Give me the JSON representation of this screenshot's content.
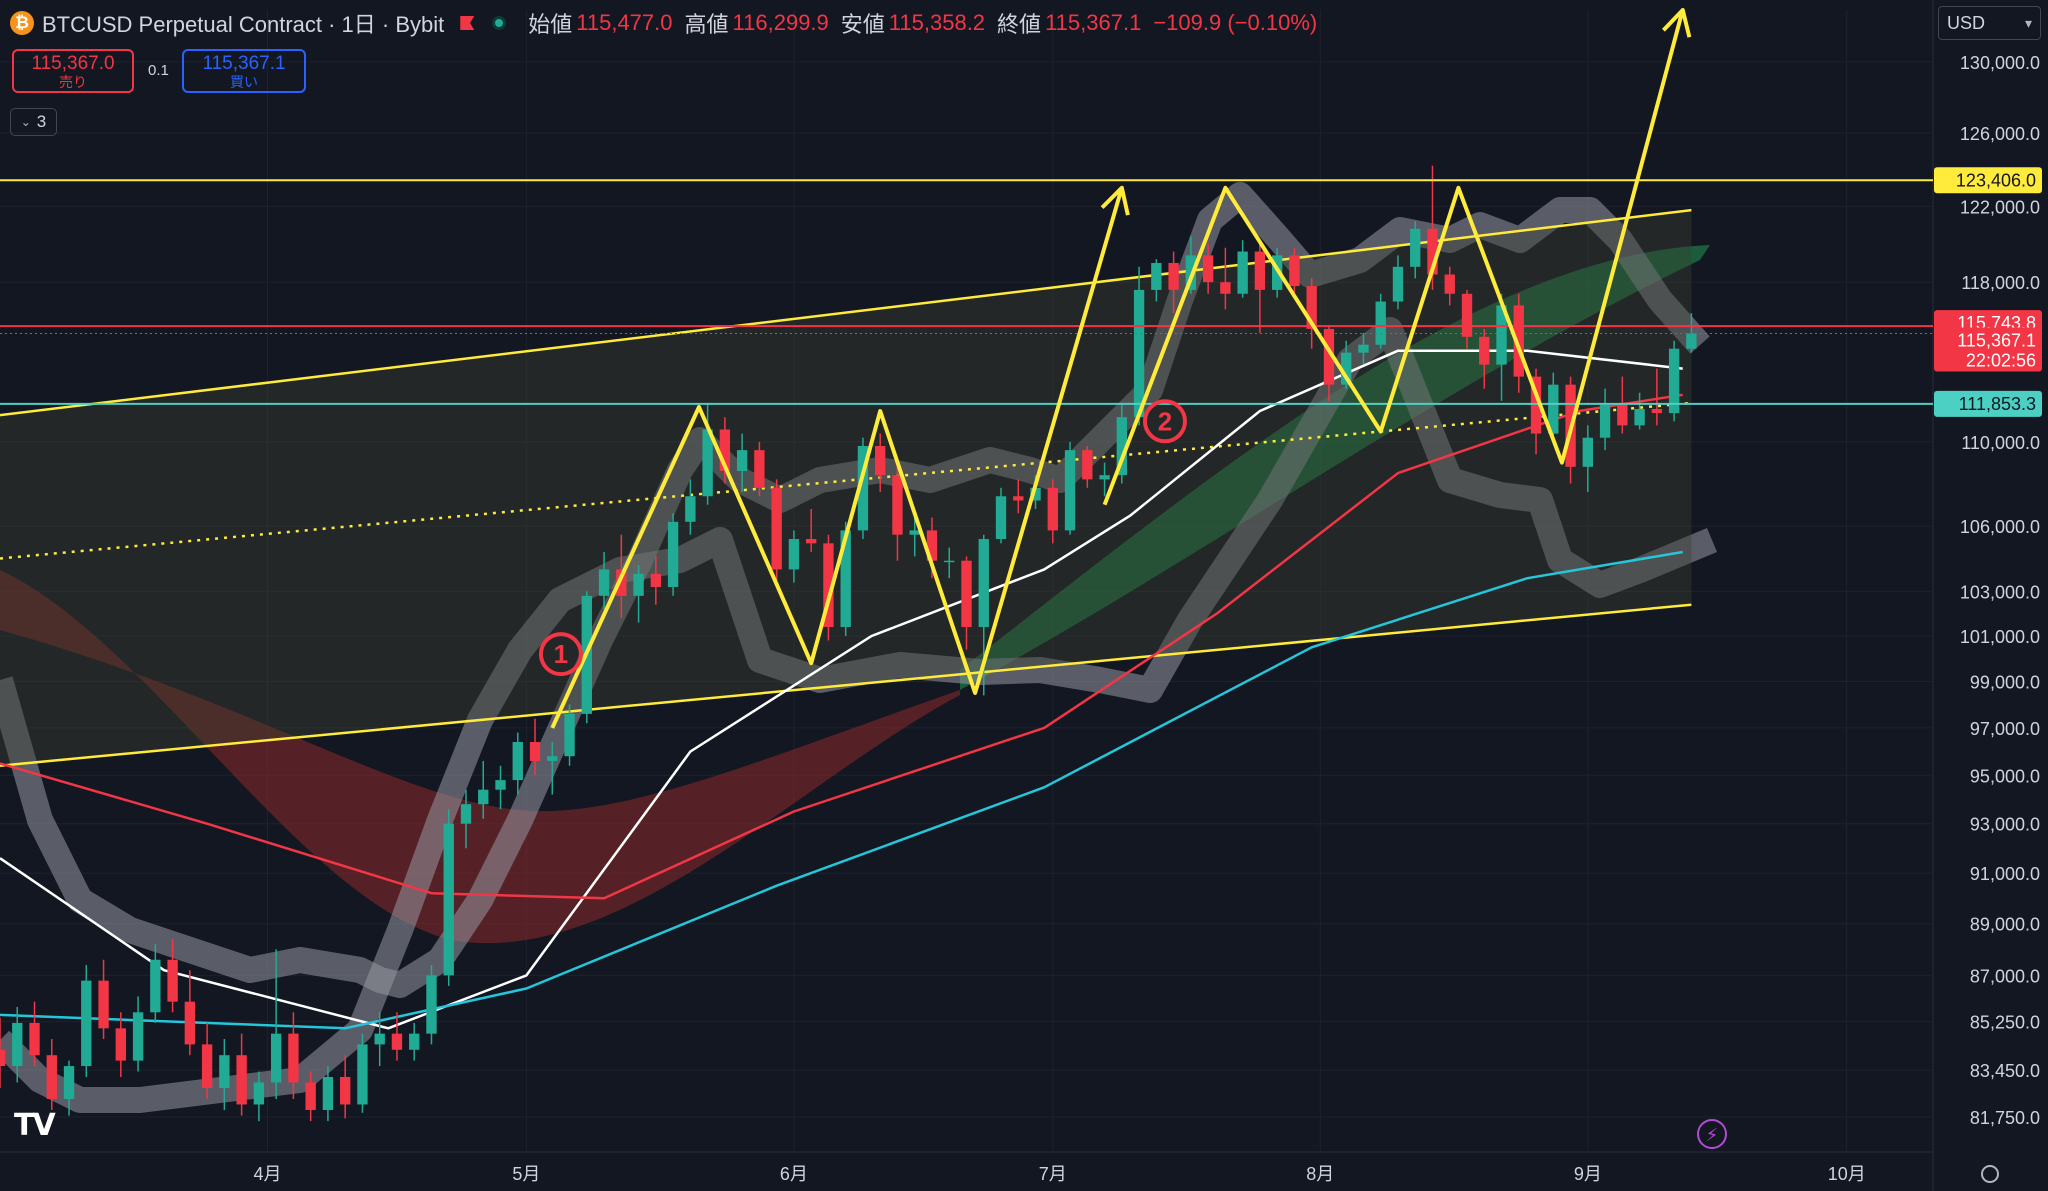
{
  "header": {
    "symbol_icon": "bitcoin-icon",
    "title": "BTCUSD Perpetual Contract · 1日 · Bybit",
    "ohlc": [
      {
        "label": "始値",
        "value": "115,477.0"
      },
      {
        "label": "高値",
        "value": "116,299.9"
      },
      {
        "label": "安値",
        "value": "115,358.2"
      },
      {
        "label": "終値",
        "value": "115,367.1"
      }
    ],
    "change": "−109.9 (−0.10%)"
  },
  "trade": {
    "sell_price": "115,367.0",
    "sell_label": "売り",
    "quantity": "0.1",
    "buy_price": "115,367.1",
    "buy_label": "買い"
  },
  "indicators": {
    "count": "3"
  },
  "currency": {
    "label": "USD"
  },
  "colors": {
    "background": "#131722",
    "up": "#22ab94",
    "down": "#f23645",
    "yellow": "#ffeb3b",
    "cyan": "#26c6da",
    "teal": "#4dd0c4"
  },
  "chart_data": {
    "type": "candlestick",
    "x_axis": {
      "range": [
        "2025-03-01",
        "2025-10-11"
      ],
      "ticks": [
        {
          "date": "2025-04-01",
          "label": "4月"
        },
        {
          "date": "2025-05-01",
          "label": "5月"
        },
        {
          "date": "2025-06-01",
          "label": "6月"
        },
        {
          "date": "2025-07-01",
          "label": "7月"
        },
        {
          "date": "2025-08-01",
          "label": "8月"
        },
        {
          "date": "2025-09-01",
          "label": "9月"
        },
        {
          "date": "2025-10-01",
          "label": "10月"
        }
      ]
    },
    "y_axis": {
      "scale": "log",
      "range": [
        80500,
        133000
      ],
      "ticks": [
        "130,000.0",
        "126,000.0",
        "122,000.0",
        "118,000.0",
        "110,000.0",
        "106,000.0",
        "103,000.0",
        "101,000.0",
        "99,000.0",
        "97,000.0",
        "95,000.0",
        "93,000.0",
        "91,000.0",
        "89,000.0",
        "87,000.0",
        "85,250.0",
        "83,450.0",
        "81,750.0"
      ]
    },
    "horizontal_lines": [
      {
        "name": "resistance",
        "price": 123406,
        "label": "123,406.0",
        "color": "#ffeb3b"
      },
      {
        "name": "red-level",
        "price": 115743.8,
        "label": "115,743.8",
        "color": "#f23645"
      },
      {
        "name": "support",
        "price": 111853.3,
        "label": "111,853.3",
        "color": "#4dd0c4"
      }
    ],
    "last_price": {
      "price": 115367.1,
      "label": "115,367.1",
      "countdown": "22:02:56"
    },
    "channel": {
      "upper": [
        [
          "2025-03-01",
          111300
        ],
        [
          "2025-09-13",
          121800
        ]
      ],
      "middle": [
        [
          "2025-03-01",
          104500
        ],
        [
          "2025-09-13",
          111900
        ]
      ],
      "lower": [
        [
          "2025-03-01",
          95400
        ],
        [
          "2025-09-13",
          102400
        ]
      ]
    },
    "zigzag_1": [
      [
        "2025-05-04",
        97000
      ],
      [
        "2025-05-21",
        111700
      ],
      [
        "2025-06-03",
        99800
      ],
      [
        "2025-06-11",
        111500
      ],
      [
        "2025-06-22",
        98500
      ],
      [
        "2025-07-09",
        123000
      ]
    ],
    "zigzag_2": [
      [
        "2025-07-07",
        107000
      ],
      [
        "2025-07-21",
        123000
      ],
      [
        "2025-08-08",
        110500
      ],
      [
        "2025-08-17",
        123000
      ],
      [
        "2025-08-29",
        109000
      ],
      [
        "2025-09-12",
        133000
      ]
    ],
    "markers": [
      {
        "text": "1",
        "date": "2025-05-05",
        "price": 100200
      },
      {
        "text": "2",
        "date": "2025-07-14",
        "price": 111000
      }
    ],
    "moving_averages": [
      {
        "color": "#ffffff",
        "points": [
          [
            "2025-03-01",
            91600
          ],
          [
            "2025-03-20",
            87200
          ],
          [
            "2025-04-15",
            85000
          ],
          [
            "2025-05-01",
            87000
          ],
          [
            "2025-05-20",
            96000
          ],
          [
            "2025-06-10",
            101000
          ],
          [
            "2025-06-30",
            104000
          ],
          [
            "2025-07-10",
            106500
          ],
          [
            "2025-07-25",
            111500
          ],
          [
            "2025-08-10",
            114500
          ],
          [
            "2025-08-25",
            114500
          ],
          [
            "2025-09-12",
            113600
          ]
        ]
      },
      {
        "color": "#f23645",
        "points": [
          [
            "2025-03-01",
            95500
          ],
          [
            "2025-03-25",
            93000
          ],
          [
            "2025-04-20",
            90200
          ],
          [
            "2025-05-10",
            90000
          ],
          [
            "2025-06-01",
            93500
          ],
          [
            "2025-06-30",
            97000
          ],
          [
            "2025-07-20",
            102000
          ],
          [
            "2025-08-10",
            108500
          ],
          [
            "2025-08-31",
            111500
          ],
          [
            "2025-09-12",
            112300
          ]
        ]
      },
      {
        "color": "#26c6da",
        "points": [
          [
            "2025-03-01",
            85500
          ],
          [
            "2025-04-10",
            85000
          ],
          [
            "2025-05-01",
            86500
          ],
          [
            "2025-05-30",
            90500
          ],
          [
            "2025-06-30",
            94500
          ],
          [
            "2025-07-31",
            100500
          ],
          [
            "2025-08-25",
            103600
          ],
          [
            "2025-09-12",
            104800
          ]
        ]
      }
    ],
    "candles": [
      [
        "2025-03-01",
        84200,
        85400,
        82800,
        83600
      ],
      [
        "2025-03-03",
        83600,
        85800,
        83000,
        85200
      ],
      [
        "2025-03-05",
        85200,
        86000,
        83600,
        84000
      ],
      [
        "2025-03-07",
        84000,
        84600,
        82000,
        82400
      ],
      [
        "2025-03-09",
        82400,
        83800,
        81800,
        83600
      ],
      [
        "2025-03-11",
        83600,
        87400,
        83200,
        86800
      ],
      [
        "2025-03-13",
        86800,
        87600,
        84600,
        85000
      ],
      [
        "2025-03-15",
        85000,
        85600,
        83200,
        83800
      ],
      [
        "2025-03-17",
        83800,
        86200,
        83400,
        85600
      ],
      [
        "2025-03-19",
        85600,
        88200,
        85200,
        87600
      ],
      [
        "2025-03-21",
        87600,
        88400,
        85600,
        86000
      ],
      [
        "2025-03-23",
        86000,
        87200,
        84000,
        84400
      ],
      [
        "2025-03-25",
        84400,
        85200,
        82400,
        82800
      ],
      [
        "2025-03-27",
        82800,
        84600,
        82000,
        84000
      ],
      [
        "2025-03-29",
        84000,
        84800,
        81800,
        82200
      ],
      [
        "2025-03-31",
        82200,
        83400,
        81600,
        83000
      ],
      [
        "2025-04-02",
        83000,
        88000,
        82400,
        84800
      ],
      [
        "2025-04-04",
        84800,
        85600,
        82400,
        83000
      ],
      [
        "2025-04-06",
        83000,
        83400,
        81600,
        82000
      ],
      [
        "2025-04-08",
        82000,
        83600,
        81600,
        83200
      ],
      [
        "2025-04-10",
        83200,
        84000,
        81700,
        82200
      ],
      [
        "2025-04-12",
        82200,
        84800,
        81900,
        84400
      ],
      [
        "2025-04-14",
        84400,
        85600,
        83600,
        84800
      ],
      [
        "2025-04-16",
        84800,
        85600,
        83800,
        84200
      ],
      [
        "2025-04-18",
        84200,
        85200,
        83800,
        84800
      ],
      [
        "2025-04-20",
        84800,
        87400,
        84400,
        87000
      ],
      [
        "2025-04-22",
        87000,
        93600,
        86600,
        93000
      ],
      [
        "2025-04-24",
        93000,
        94400,
        92000,
        93800
      ],
      [
        "2025-04-26",
        93800,
        95600,
        93200,
        94400
      ],
      [
        "2025-04-28",
        94400,
        95400,
        93600,
        94800
      ],
      [
        "2025-04-30",
        94800,
        96800,
        94200,
        96400
      ],
      [
        "2025-05-02",
        96400,
        97400,
        95000,
        95600
      ],
      [
        "2025-05-04",
        95600,
        96400,
        94200,
        95800
      ],
      [
        "2025-05-06",
        95800,
        98000,
        95400,
        97600
      ],
      [
        "2025-05-08",
        97600,
        103000,
        97200,
        102800
      ],
      [
        "2025-05-10",
        102800,
        104800,
        102200,
        104000
      ],
      [
        "2025-05-12",
        104000,
        105600,
        101800,
        102800
      ],
      [
        "2025-05-14",
        102800,
        104200,
        101600,
        103800
      ],
      [
        "2025-05-16",
        103800,
        104600,
        102400,
        103200
      ],
      [
        "2025-05-18",
        103200,
        106600,
        102800,
        106200
      ],
      [
        "2025-05-20",
        106200,
        108200,
        105600,
        107400
      ],
      [
        "2025-05-22",
        107400,
        111900,
        107000,
        110600
      ],
      [
        "2025-05-24",
        110600,
        111200,
        108000,
        108600
      ],
      [
        "2025-05-26",
        108600,
        110400,
        107600,
        109600
      ],
      [
        "2025-05-28",
        109600,
        110000,
        107400,
        107800
      ],
      [
        "2025-05-30",
        107800,
        108200,
        103400,
        104000
      ],
      [
        "2025-06-01",
        104000,
        105800,
        103400,
        105400
      ],
      [
        "2025-06-03",
        105400,
        106800,
        104800,
        105200
      ],
      [
        "2025-06-05",
        105200,
        105600,
        100800,
        101400
      ],
      [
        "2025-06-07",
        101400,
        106200,
        101000,
        105800
      ],
      [
        "2025-06-09",
        105800,
        110200,
        105400,
        109800
      ],
      [
        "2025-06-11",
        109800,
        110400,
        107600,
        108400
      ],
      [
        "2025-06-13",
        108400,
        108800,
        104400,
        105600
      ],
      [
        "2025-06-15",
        105600,
        106600,
        104600,
        105800
      ],
      [
        "2025-06-17",
        105800,
        106400,
        103600,
        104400
      ],
      [
        "2025-06-19",
        104400,
        105000,
        103600,
        104400
      ],
      [
        "2025-06-21",
        104400,
        104600,
        100400,
        101400
      ],
      [
        "2025-06-23",
        101400,
        105600,
        98400,
        105400
      ],
      [
        "2025-06-25",
        105400,
        107800,
        105200,
        107400
      ],
      [
        "2025-06-27",
        107400,
        108200,
        106600,
        107200
      ],
      [
        "2025-06-29",
        107200,
        108400,
        106800,
        107800
      ],
      [
        "2025-07-01",
        107800,
        108200,
        105200,
        105800
      ],
      [
        "2025-07-03",
        105800,
        110000,
        105600,
        109600
      ],
      [
        "2025-07-05",
        109600,
        109800,
        107800,
        108200
      ],
      [
        "2025-07-07",
        108200,
        109000,
        107400,
        108400
      ],
      [
        "2025-07-09",
        108400,
        111800,
        108000,
        111200
      ],
      [
        "2025-07-11",
        111200,
        118800,
        110800,
        117600
      ],
      [
        "2025-07-13",
        117600,
        119200,
        117000,
        119000
      ],
      [
        "2025-07-15",
        119000,
        119600,
        116400,
        117600
      ],
      [
        "2025-07-17",
        117600,
        120400,
        117400,
        119400
      ],
      [
        "2025-07-19",
        119400,
        120000,
        117400,
        118000
      ],
      [
        "2025-07-21",
        118000,
        119800,
        116600,
        117400
      ],
      [
        "2025-07-23",
        117400,
        120200,
        117200,
        119600
      ],
      [
        "2025-07-25",
        119600,
        120000,
        115400,
        117600
      ],
      [
        "2025-07-27",
        117600,
        119800,
        117200,
        119400
      ],
      [
        "2025-07-29",
        119400,
        119800,
        117400,
        117800
      ],
      [
        "2025-07-31",
        117800,
        118200,
        114600,
        115600
      ],
      [
        "2025-08-02",
        115600,
        115800,
        112000,
        112800
      ],
      [
        "2025-08-04",
        112800,
        115000,
        112600,
        114400
      ],
      [
        "2025-08-06",
        114400,
        115400,
        113800,
        114800
      ],
      [
        "2025-08-08",
        114800,
        117400,
        114600,
        117000
      ],
      [
        "2025-08-10",
        117000,
        119400,
        116600,
        118800
      ],
      [
        "2025-08-12",
        118800,
        121200,
        118200,
        120800
      ],
      [
        "2025-08-14",
        120800,
        124200,
        117600,
        118400
      ],
      [
        "2025-08-16",
        118400,
        118800,
        116800,
        117400
      ],
      [
        "2025-08-18",
        117400,
        117600,
        114600,
        115200
      ],
      [
        "2025-08-20",
        115200,
        115600,
        112600,
        113800
      ],
      [
        "2025-08-22",
        113800,
        117400,
        112000,
        116800
      ],
      [
        "2025-08-24",
        116800,
        117400,
        112400,
        113200
      ],
      [
        "2025-08-26",
        113200,
        113600,
        109400,
        110400
      ],
      [
        "2025-08-28",
        110400,
        113400,
        110000,
        112800
      ],
      [
        "2025-08-30",
        112800,
        113200,
        108000,
        108800
      ],
      [
        "2025-09-01",
        108800,
        110800,
        107600,
        110200
      ],
      [
        "2025-09-03",
        110200,
        112600,
        109600,
        111800
      ],
      [
        "2025-09-05",
        111800,
        113200,
        110400,
        110800
      ],
      [
        "2025-09-07",
        110800,
        112400,
        110600,
        111600
      ],
      [
        "2025-09-09",
        111600,
        113600,
        110800,
        111400
      ],
      [
        "2025-09-11",
        111400,
        115000,
        111000,
        114600
      ],
      [
        "2025-09-13",
        114600,
        116400,
        114400,
        115367
      ]
    ]
  }
}
